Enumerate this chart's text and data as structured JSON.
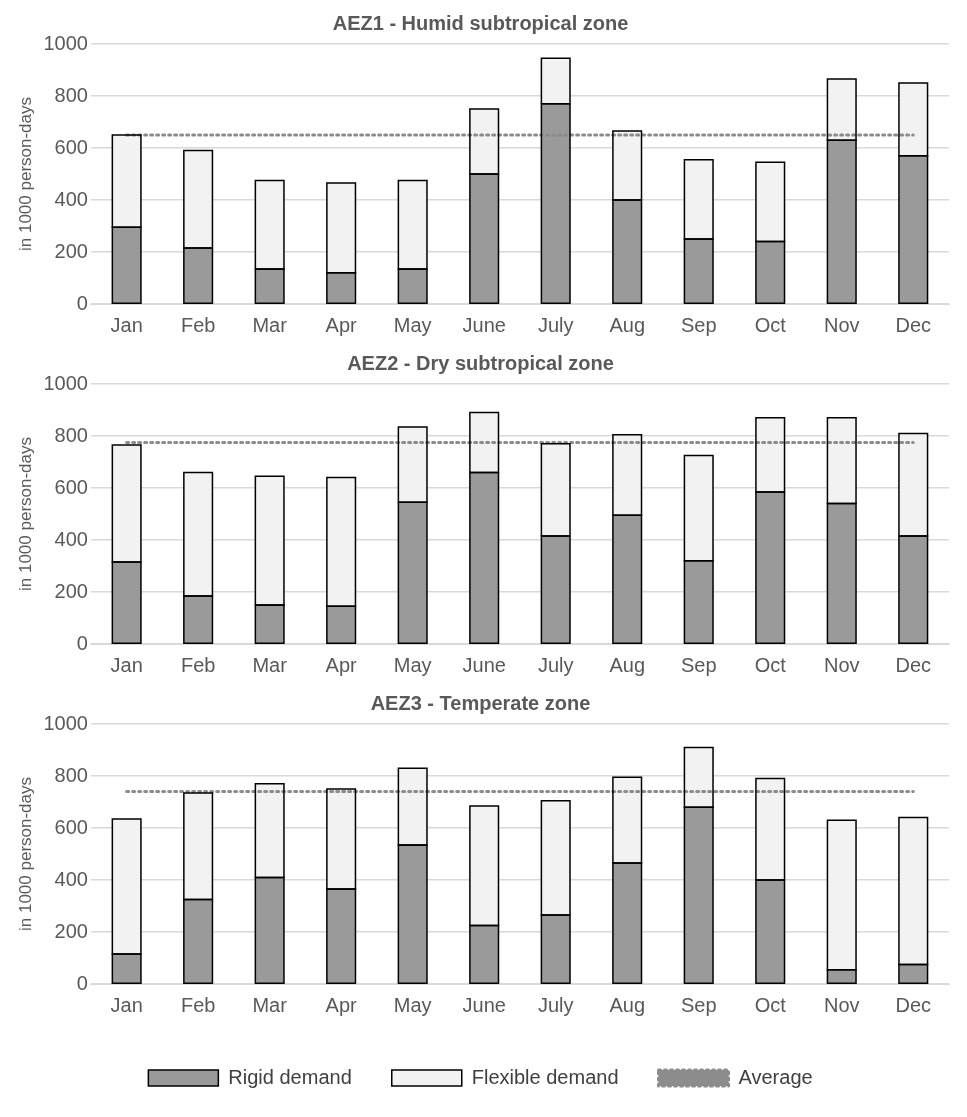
{
  "chart_data": [
    {
      "type": "bar",
      "title": "AEZ1 - Humid subtropical zone",
      "ylabel": "in 1000 person-days",
      "categories": [
        "Jan",
        "Feb",
        "Mar",
        "Apr",
        "May",
        "June",
        "July",
        "Aug",
        "Sep",
        "Oct",
        "Nov",
        "Dec"
      ],
      "stacked": true,
      "ylim": [
        0,
        1000
      ],
      "yticks": [
        0,
        200,
        400,
        600,
        800,
        1000
      ],
      "grid": "y",
      "legend": false,
      "series": [
        {
          "color": "#9a9a9a",
          "values": [
            295,
            215,
            135,
            120,
            135,
            500,
            770,
            400,
            250,
            240,
            630,
            570
          ]
        },
        {
          "color": "#f2f2f2",
          "values": [
            355,
            375,
            340,
            345,
            340,
            250,
            175,
            265,
            305,
            305,
            235,
            280
          ]
        },
        {
          "type": "line",
          "color": "#8c8c8c",
          "line_style": "dotted",
          "marker": "none",
          "values": [
            650,
            650,
            650,
            650,
            650,
            650,
            650,
            650,
            650,
            650,
            650,
            650
          ]
        }
      ]
    },
    {
      "type": "bar",
      "title": "AEZ2 - Dry subtropical zone",
      "ylabel": "in 1000 person-days",
      "categories": [
        "Jan",
        "Feb",
        "Mar",
        "Apr",
        "May",
        "June",
        "July",
        "Aug",
        "Sep",
        "Oct",
        "Nov",
        "Dec"
      ],
      "stacked": true,
      "ylim": [
        0,
        1000
      ],
      "yticks": [
        0,
        200,
        400,
        600,
        800,
        1000
      ],
      "grid": "y",
      "legend": false,
      "series": [
        {
          "color": "#9a9a9a",
          "values": [
            315,
            185,
            150,
            145,
            545,
            660,
            415,
            495,
            320,
            585,
            540,
            415
          ]
        },
        {
          "color": "#f2f2f2",
          "values": [
            450,
            475,
            495,
            495,
            290,
            230,
            355,
            310,
            405,
            285,
            330,
            395
          ]
        },
        {
          "type": "line",
          "color": "#8c8c8c",
          "line_style": "dotted",
          "marker": "none",
          "values": [
            775,
            775,
            775,
            775,
            775,
            775,
            775,
            775,
            775,
            775,
            775,
            775
          ]
        }
      ]
    },
    {
      "type": "bar",
      "title": "AEZ3 - Temperate zone",
      "ylabel": "in 1000 person-days",
      "categories": [
        "Jan",
        "Feb",
        "Mar",
        "Apr",
        "May",
        "June",
        "July",
        "Aug",
        "Sep",
        "Oct",
        "Nov",
        "Dec"
      ],
      "stacked": true,
      "ylim": [
        0,
        1000
      ],
      "yticks": [
        0,
        200,
        400,
        600,
        800,
        1000
      ],
      "grid": "y",
      "legend": "bottom",
      "series": [
        {
          "name": "Rigid demand",
          "color": "#9a9a9a",
          "values": [
            115,
            325,
            410,
            365,
            535,
            225,
            265,
            465,
            680,
            400,
            55,
            75
          ]
        },
        {
          "name": "Flexible demand",
          "color": "#f2f2f2",
          "values": [
            520,
            410,
            360,
            385,
            295,
            460,
            440,
            330,
            230,
            390,
            575,
            565
          ]
        },
        {
          "name": "Average",
          "type": "line",
          "color": "#8c8c8c",
          "line_style": "dotted",
          "marker": "none",
          "values": [
            740,
            740,
            740,
            740,
            740,
            740,
            740,
            740,
            740,
            740,
            740,
            740
          ]
        }
      ]
    }
  ]
}
